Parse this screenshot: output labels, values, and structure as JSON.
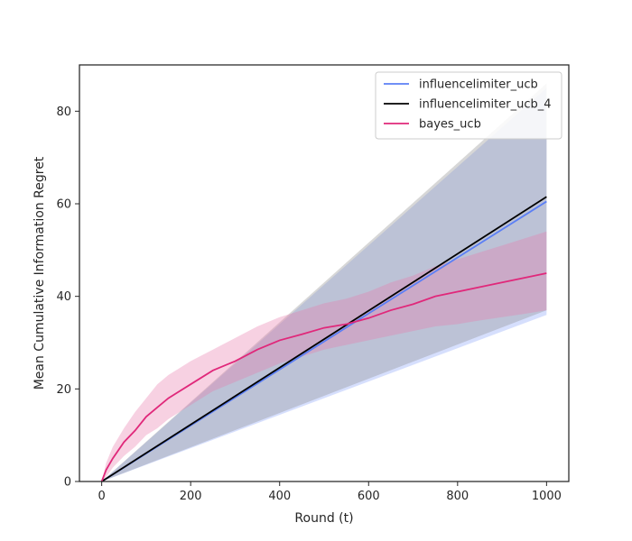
{
  "chart_data": {
    "type": "line",
    "title": "",
    "xlabel": "Round (t)",
    "ylabel": "Mean Cumulative Information Regret",
    "xlim": [
      -50,
      1050
    ],
    "ylim": [
      0,
      90
    ],
    "xticks": [
      0,
      200,
      400,
      600,
      800,
      1000
    ],
    "yticks": [
      0,
      20,
      40,
      60,
      80
    ],
    "grid": false,
    "legend_position": "top-right",
    "series": [
      {
        "name": "influencelimiter_ucb",
        "color": "#5b7ff5",
        "band_color": "#8aa4f8",
        "x": [
          0,
          1000
        ],
        "mean": [
          0,
          60.5
        ],
        "lower": [
          0,
          36
        ],
        "upper": [
          0,
          85
        ]
      },
      {
        "name": "influencelimiter_ucb_4",
        "color": "#000000",
        "band_color": "#8c8c8c",
        "x": [
          0,
          1000
        ],
        "mean": [
          0,
          61.5
        ],
        "lower": [
          0,
          37
        ],
        "upper": [
          0,
          86
        ]
      },
      {
        "name": "bayes_ucb",
        "color": "#e0287a",
        "band_color": "#e87aab",
        "x": [
          0,
          10,
          25,
          50,
          75,
          100,
          125,
          150,
          175,
          200,
          250,
          300,
          350,
          400,
          450,
          500,
          550,
          600,
          650,
          700,
          750,
          800,
          850,
          900,
          950,
          1000
        ],
        "mean": [
          0,
          2.5,
          5,
          8.5,
          11,
          14,
          16,
          18,
          19.5,
          21,
          24,
          26,
          28.5,
          30.5,
          31.8,
          33.2,
          34,
          35.3,
          37,
          38.3,
          40,
          41,
          42,
          43,
          44,
          45
        ],
        "lower": [
          0,
          1,
          3,
          5.5,
          7.5,
          10,
          11.5,
          13.5,
          15,
          16.5,
          19.5,
          21.5,
          23.5,
          25.5,
          27,
          28.5,
          29.5,
          30.5,
          31.5,
          32.5,
          33.5,
          34,
          34.8,
          35.5,
          36.2,
          37
        ],
        "upper": [
          0,
          4,
          7.5,
          11.5,
          15,
          18,
          21,
          23,
          24.5,
          26,
          28.5,
          31,
          33.5,
          35.5,
          37,
          38.5,
          39.5,
          41,
          43,
          44.5,
          46.5,
          48,
          49.5,
          51,
          52.5,
          54
        ]
      }
    ]
  }
}
